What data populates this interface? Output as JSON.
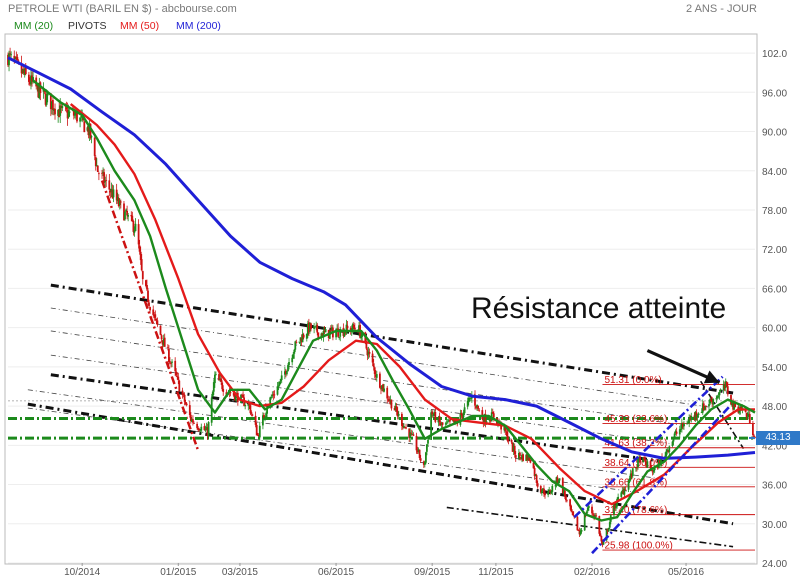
{
  "header": {
    "title": "PETROLE WTI (BARIL EN $) - abcbourse.com",
    "period": "2 ANS - JOUR"
  },
  "legend": [
    {
      "label": "MM (20)",
      "color": "#1c8a1c"
    },
    {
      "label": "PIVOTS",
      "color": "#333333"
    },
    {
      "label": "MM (50)",
      "color": "#e41a1a"
    },
    {
      "label": "MM (200)",
      "color": "#1f1fd6"
    }
  ],
  "annotation": {
    "text": "Résistance atteinte"
  },
  "colors": {
    "up_candle": "#1c8a1c",
    "down_candle": "#cc1111",
    "mm20": "#1c8a1c",
    "mm50": "#e41a1a",
    "mm200": "#1f1fd6",
    "pivot": "#1c8a1c",
    "fibo": "#cc1111",
    "trend": "#111111",
    "channel_up": "#1f1fd6",
    "last_label_bg": "#2f79c8"
  },
  "chart_data": {
    "type": "candlestick",
    "ylim": [
      24,
      104
    ],
    "yticks": [
      "102.0",
      "96.00",
      "90.00",
      "84.00",
      "78.00",
      "72.00",
      "66.00",
      "60.00",
      "54.00",
      "48.00",
      "42.00",
      "36.00",
      "30.00",
      "24.00"
    ],
    "ytick_values": [
      102,
      96,
      90,
      84,
      78,
      72,
      66,
      60,
      54,
      48,
      42,
      36,
      30,
      24
    ],
    "xticks": [
      "10/2014",
      "01/2015",
      "03/2015",
      "06/2015",
      "09/2015",
      "11/2015",
      "02/2016",
      "05/2016"
    ],
    "xtick_dates": [
      "2014-10-01",
      "2015-01-01",
      "2015-03-01",
      "2015-06-01",
      "2015-09-01",
      "2015-11-01",
      "2016-02-01",
      "2016-05-01"
    ],
    "xlim": [
      "2014-07-22",
      "2016-07-06"
    ],
    "last_value": "43.13",
    "price_path": [
      [
        "2014-07-22",
        101.5
      ],
      [
        "2014-08-10",
        98.0
      ],
      [
        "2014-08-25",
        95.5
      ],
      [
        "2014-09-10",
        93.0
      ],
      [
        "2014-09-25",
        92.5
      ],
      [
        "2014-10-08",
        90.0
      ],
      [
        "2014-10-16",
        84.0
      ],
      [
        "2014-10-28",
        81.0
      ],
      [
        "2014-11-10",
        77.5
      ],
      [
        "2014-11-22",
        75.0
      ],
      [
        "2014-11-28",
        67.0
      ],
      [
        "2014-12-10",
        61.0
      ],
      [
        "2014-12-22",
        56.0
      ],
      [
        "2015-01-02",
        51.0
      ],
      [
        "2015-01-13",
        46.0
      ],
      [
        "2015-01-20",
        45.0
      ],
      [
        "2015-01-29",
        44.0
      ],
      [
        "2015-02-05",
        52.5
      ],
      [
        "2015-02-15",
        50.5
      ],
      [
        "2015-02-26",
        49.5
      ],
      [
        "2015-03-10",
        48.0
      ],
      [
        "2015-03-18",
        43.5
      ],
      [
        "2015-03-28",
        48.5
      ],
      [
        "2015-04-10",
        52.0
      ],
      [
        "2015-04-22",
        57.0
      ],
      [
        "2015-05-06",
        60.0
      ],
      [
        "2015-05-20",
        59.0
      ],
      [
        "2015-06-05",
        59.5
      ],
      [
        "2015-06-22",
        60.0
      ],
      [
        "2015-07-01",
        56.5
      ],
      [
        "2015-07-10",
        52.5
      ],
      [
        "2015-07-22",
        49.0
      ],
      [
        "2015-08-05",
        45.0
      ],
      [
        "2015-08-15",
        42.5
      ],
      [
        "2015-08-24",
        38.5
      ],
      [
        "2015-08-31",
        47.0
      ],
      [
        "2015-09-10",
        45.0
      ],
      [
        "2015-09-25",
        45.5
      ],
      [
        "2015-10-09",
        49.5
      ],
      [
        "2015-10-20",
        46.0
      ],
      [
        "2015-10-30",
        46.5
      ],
      [
        "2015-11-10",
        44.0
      ],
      [
        "2015-11-20",
        40.5
      ],
      [
        "2015-12-04",
        40.0
      ],
      [
        "2015-12-12",
        35.5
      ],
      [
        "2015-12-21",
        34.5
      ],
      [
        "2015-12-31",
        37.0
      ],
      [
        "2016-01-10",
        32.5
      ],
      [
        "2016-01-20",
        28.5
      ],
      [
        "2016-01-28",
        32.5
      ],
      [
        "2016-02-05",
        31.0
      ],
      [
        "2016-02-11",
        26.5
      ],
      [
        "2016-02-22",
        32.5
      ],
      [
        "2016-03-05",
        36.0
      ],
      [
        "2016-03-18",
        40.0
      ],
      [
        "2016-03-31",
        38.0
      ],
      [
        "2016-04-10",
        40.5
      ],
      [
        "2016-04-20",
        43.5
      ],
      [
        "2016-05-01",
        45.5
      ],
      [
        "2016-05-15",
        47.5
      ],
      [
        "2016-05-30",
        49.5
      ],
      [
        "2016-06-08",
        51.0
      ],
      [
        "2016-06-15",
        48.0
      ],
      [
        "2016-06-24",
        47.5
      ],
      [
        "2016-07-01",
        46.0
      ],
      [
        "2016-07-06",
        43.1
      ]
    ],
    "mm20_path": [
      [
        "2014-08-15",
        97.8
      ],
      [
        "2014-09-10",
        94.5
      ],
      [
        "2014-10-01",
        92.5
      ],
      [
        "2014-10-15",
        89.0
      ],
      [
        "2014-11-01",
        84.0
      ],
      [
        "2014-11-20",
        79.5
      ],
      [
        "2014-12-05",
        74.0
      ],
      [
        "2014-12-20",
        66.0
      ],
      [
        "2015-01-05",
        58.0
      ],
      [
        "2015-01-20",
        50.5
      ],
      [
        "2015-02-05",
        47.0
      ],
      [
        "2015-02-20",
        50.5
      ],
      [
        "2015-03-10",
        50.5
      ],
      [
        "2015-03-25",
        47.5
      ],
      [
        "2015-04-10",
        49.0
      ],
      [
        "2015-04-25",
        53.5
      ],
      [
        "2015-05-10",
        58.0
      ],
      [
        "2015-06-01",
        59.5
      ],
      [
        "2015-06-25",
        59.5
      ],
      [
        "2015-07-10",
        56.5
      ],
      [
        "2015-07-25",
        52.0
      ],
      [
        "2015-08-10",
        47.5
      ],
      [
        "2015-08-25",
        43.0
      ],
      [
        "2015-09-10",
        44.5
      ],
      [
        "2015-09-25",
        45.5
      ],
      [
        "2015-10-10",
        46.5
      ],
      [
        "2015-10-25",
        46.5
      ],
      [
        "2015-11-10",
        45.0
      ],
      [
        "2015-11-25",
        42.0
      ],
      [
        "2015-12-10",
        39.0
      ],
      [
        "2015-12-25",
        36.5
      ],
      [
        "2016-01-10",
        35.0
      ],
      [
        "2016-01-25",
        31.5
      ],
      [
        "2016-02-10",
        30.5
      ],
      [
        "2016-02-25",
        31.0
      ],
      [
        "2016-03-10",
        34.5
      ],
      [
        "2016-03-25",
        38.0
      ],
      [
        "2016-04-10",
        39.5
      ],
      [
        "2016-04-25",
        42.0
      ],
      [
        "2016-05-10",
        45.0
      ],
      [
        "2016-05-25",
        47.5
      ],
      [
        "2016-06-10",
        49.0
      ],
      [
        "2016-06-25",
        48.0
      ],
      [
        "2016-07-06",
        47.0
      ]
    ],
    "mm50_path": [
      [
        "2014-09-20",
        94.2
      ],
      [
        "2014-10-15",
        91.0
      ],
      [
        "2014-11-01",
        88.0
      ],
      [
        "2014-11-20",
        83.5
      ],
      [
        "2014-12-10",
        76.5
      ],
      [
        "2015-01-01",
        67.5
      ],
      [
        "2015-01-20",
        59.0
      ],
      [
        "2015-02-10",
        53.0
      ],
      [
        "2015-03-01",
        49.0
      ],
      [
        "2015-03-20",
        48.0
      ],
      [
        "2015-04-10",
        48.5
      ],
      [
        "2015-05-01",
        51.0
      ],
      [
        "2015-05-25",
        55.0
      ],
      [
        "2015-06-20",
        58.0
      ],
      [
        "2015-07-10",
        57.5
      ],
      [
        "2015-08-01",
        54.0
      ],
      [
        "2015-08-25",
        49.0
      ],
      [
        "2015-09-20",
        46.0
      ],
      [
        "2015-10-15",
        45.5
      ],
      [
        "2015-11-10",
        45.0
      ],
      [
        "2015-12-05",
        43.0
      ],
      [
        "2016-01-01",
        38.5
      ],
      [
        "2016-01-25",
        35.0
      ],
      [
        "2016-02-20",
        33.0
      ],
      [
        "2016-03-15",
        35.0
      ],
      [
        "2016-04-10",
        37.5
      ],
      [
        "2016-05-05",
        41.5
      ],
      [
        "2016-06-01",
        45.5
      ],
      [
        "2016-06-20",
        47.5
      ],
      [
        "2016-07-06",
        47.5
      ]
    ],
    "mm200_path": [
      [
        "2014-07-22",
        101.3
      ],
      [
        "2014-08-20",
        99.0
      ],
      [
        "2014-09-20",
        96.5
      ],
      [
        "2014-10-20",
        93.0
      ],
      [
        "2014-11-20",
        89.5
      ],
      [
        "2014-12-20",
        85.0
      ],
      [
        "2015-01-20",
        79.5
      ],
      [
        "2015-02-20",
        74.0
      ],
      [
        "2015-03-20",
        70.0
      ],
      [
        "2015-04-20",
        67.5
      ],
      [
        "2015-05-20",
        65.5
      ],
      [
        "2015-06-10",
        63.5
      ],
      [
        "2015-07-10",
        58.5
      ],
      [
        "2015-08-10",
        54.5
      ],
      [
        "2015-09-10",
        51.0
      ],
      [
        "2015-10-10",
        49.5
      ],
      [
        "2015-11-10",
        49.0
      ],
      [
        "2015-12-10",
        48.0
      ],
      [
        "2016-01-10",
        45.5
      ],
      [
        "2016-02-10",
        43.0
      ],
      [
        "2016-03-10",
        41.0
      ],
      [
        "2016-04-10",
        40.0
      ],
      [
        "2016-05-10",
        40.2
      ],
      [
        "2016-06-10",
        40.5
      ],
      [
        "2016-07-06",
        40.9
      ]
    ],
    "pivots": [
      46.1,
      43.1
    ],
    "fibonacci": {
      "from_date": "2016-02-11",
      "to_date": "2016-07-06",
      "levels": [
        {
          "price": 51.31,
          "label": "51.31 (0.0%)"
        },
        {
          "price": 45.33,
          "label": "45.33 (23.6%)"
        },
        {
          "price": 41.63,
          "label": "41.63 (38.2%)"
        },
        {
          "price": 38.64,
          "label": "38.64 (50.0%)"
        },
        {
          "price": 35.66,
          "label": "35.66 (61.8%)"
        },
        {
          "price": 31.4,
          "label": "31.40 (78.6%)"
        },
        {
          "price": 25.98,
          "label": "25.98 (100.0%)"
        }
      ]
    },
    "trend_lines": [
      {
        "style": "thick",
        "points": [
          [
            "2014-09-01",
            66.5
          ],
          [
            "2016-06-15",
            50.0
          ]
        ]
      },
      {
        "style": "thin",
        "points": [
          [
            "2014-09-01",
            63.0
          ],
          [
            "2016-05-25",
            47.8
          ]
        ]
      },
      {
        "style": "thin",
        "points": [
          [
            "2014-09-01",
            59.5
          ],
          [
            "2016-05-01",
            45.0
          ]
        ]
      },
      {
        "style": "thin",
        "points": [
          [
            "2014-09-01",
            55.8
          ],
          [
            "2016-04-15",
            42.3
          ]
        ]
      },
      {
        "style": "thick",
        "points": [
          [
            "2014-09-01",
            52.8
          ],
          [
            "2016-04-10",
            39.5
          ]
        ]
      },
      {
        "style": "thin",
        "points": [
          [
            "2014-08-10",
            50.5
          ],
          [
            "2016-04-01",
            37.0
          ]
        ]
      },
      {
        "style": "thin",
        "points": [
          [
            "2014-08-10",
            47.7
          ],
          [
            "2016-03-20",
            34.7
          ]
        ]
      },
      {
        "style": "thick",
        "points": [
          [
            "2014-08-10",
            48.3
          ],
          [
            "2016-06-15",
            30.0
          ]
        ]
      },
      {
        "style": "dashdot",
        "points": [
          [
            "2015-09-15",
            32.5
          ],
          [
            "2016-06-15",
            26.5
          ]
        ]
      },
      {
        "style": "dashdot",
        "points": [
          [
            "2016-05-15",
            51.8
          ],
          [
            "2016-06-25",
            41.5
          ]
        ]
      }
    ],
    "decline_line": [
      [
        "2014-10-20",
        82.5
      ],
      [
        "2015-01-20",
        41.2
      ]
    ],
    "up_channel": [
      {
        "points": [
          [
            "2016-01-15",
            31.0
          ],
          [
            "2016-06-05",
            52.5
          ]
        ]
      },
      {
        "points": [
          [
            "2016-02-01",
            25.5
          ],
          [
            "2016-06-12",
            48.0
          ]
        ]
      }
    ],
    "arrow": {
      "from_date": "2016-03-25",
      "from_price": 56.5,
      "to_date": "2016-06-02",
      "to_price": 51.6
    }
  }
}
